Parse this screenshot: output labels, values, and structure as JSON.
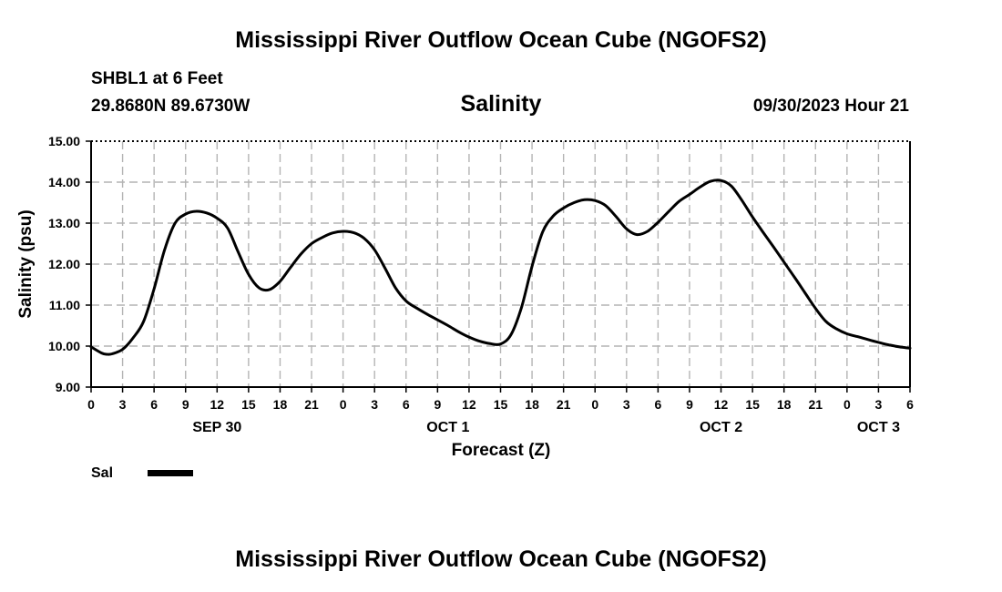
{
  "header": {
    "title": "Mississippi River Outflow Ocean Cube (NGOFS2)",
    "station": "SHBL1 at 6 Feet",
    "coords": "29.8680N  89.6730W",
    "variable": "Salinity",
    "datetime": "09/30/2023 Hour 21"
  },
  "footer": {
    "title": "Mississippi River Outflow Ocean Cube (NGOFS2)"
  },
  "legend": {
    "label": "Sal"
  },
  "colors": {
    "line": "#000000",
    "grid": "#b4b4b4"
  },
  "chart_data": {
    "type": "line",
    "title": "Salinity",
    "xlabel": "Forecast (Z)",
    "ylabel": "Salinity (psu)",
    "ylim": [
      9.0,
      15.0
    ],
    "xlim_hours": [
      0,
      78
    ],
    "yticks": [
      "9.00",
      "10.00",
      "11.00",
      "12.00",
      "13.00",
      "14.00",
      "15.00"
    ],
    "xtick_labels": [
      "0",
      "3",
      "6",
      "9",
      "12",
      "15",
      "18",
      "21",
      "0",
      "3",
      "6",
      "9",
      "12",
      "15",
      "18",
      "21",
      "0",
      "3",
      "6",
      "9",
      "12",
      "15",
      "18",
      "21",
      "0",
      "3",
      "6"
    ],
    "day_labels": [
      {
        "label": "SEP 30",
        "hour": 12
      },
      {
        "label": "OCT 1",
        "hour": 34
      },
      {
        "label": "OCT 2",
        "hour": 60
      },
      {
        "label": "OCT 3",
        "hour": 75
      }
    ],
    "grid": true,
    "series": [
      {
        "name": "Sal",
        "x": [
          0,
          1,
          1.5,
          2,
          3,
          4,
          5,
          6,
          7,
          8,
          9,
          10,
          11,
          12,
          13,
          14,
          15,
          16,
          17,
          18,
          19,
          20,
          21,
          22,
          23,
          24,
          25,
          26,
          27,
          28,
          29,
          30,
          31,
          32,
          33,
          34,
          35,
          36,
          37,
          38,
          39,
          40,
          41,
          42,
          43,
          44,
          45,
          46,
          47,
          48,
          49,
          50,
          51,
          52,
          53,
          54,
          55,
          56,
          57,
          58,
          59,
          60,
          61,
          62,
          63,
          64,
          65,
          66,
          67,
          68,
          69,
          70,
          71,
          72,
          73,
          74,
          75,
          76,
          77,
          78
        ],
        "values": [
          9.98,
          9.83,
          9.8,
          9.81,
          9.92,
          10.2,
          10.6,
          11.4,
          12.35,
          13.0,
          13.22,
          13.29,
          13.25,
          13.12,
          12.88,
          12.3,
          11.75,
          11.42,
          11.38,
          11.58,
          11.92,
          12.25,
          12.5,
          12.65,
          12.76,
          12.8,
          12.77,
          12.63,
          12.35,
          11.9,
          11.42,
          11.1,
          10.93,
          10.78,
          10.64,
          10.5,
          10.35,
          10.22,
          10.12,
          10.06,
          10.05,
          10.28,
          10.95,
          11.95,
          12.78,
          13.17,
          13.37,
          13.5,
          13.57,
          13.55,
          13.43,
          13.16,
          12.86,
          12.72,
          12.8,
          13.02,
          13.28,
          13.53,
          13.7,
          13.88,
          14.02,
          14.04,
          13.9,
          13.55,
          13.15,
          12.78,
          12.42,
          12.05,
          11.68,
          11.3,
          10.92,
          10.6,
          10.42,
          10.3,
          10.23,
          10.16,
          10.09,
          10.03,
          9.98,
          9.95
        ]
      }
    ]
  }
}
